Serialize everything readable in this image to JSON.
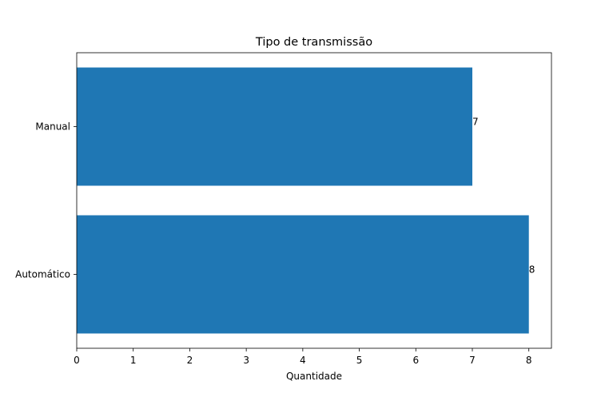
{
  "chart_data": {
    "type": "bar",
    "orientation": "horizontal",
    "title": "Tipo de transmissão",
    "xlabel": "Quantidade",
    "ylabel": "",
    "categories": [
      "Automático",
      "Manual"
    ],
    "values": [
      8,
      7
    ],
    "data_labels": [
      "8",
      "7"
    ],
    "xlim": [
      0,
      8.4
    ],
    "xticks": [
      0,
      1,
      2,
      3,
      4,
      5,
      6,
      7,
      8
    ],
    "grid": false,
    "legend": "none",
    "bar_color": "#1f77b4"
  }
}
